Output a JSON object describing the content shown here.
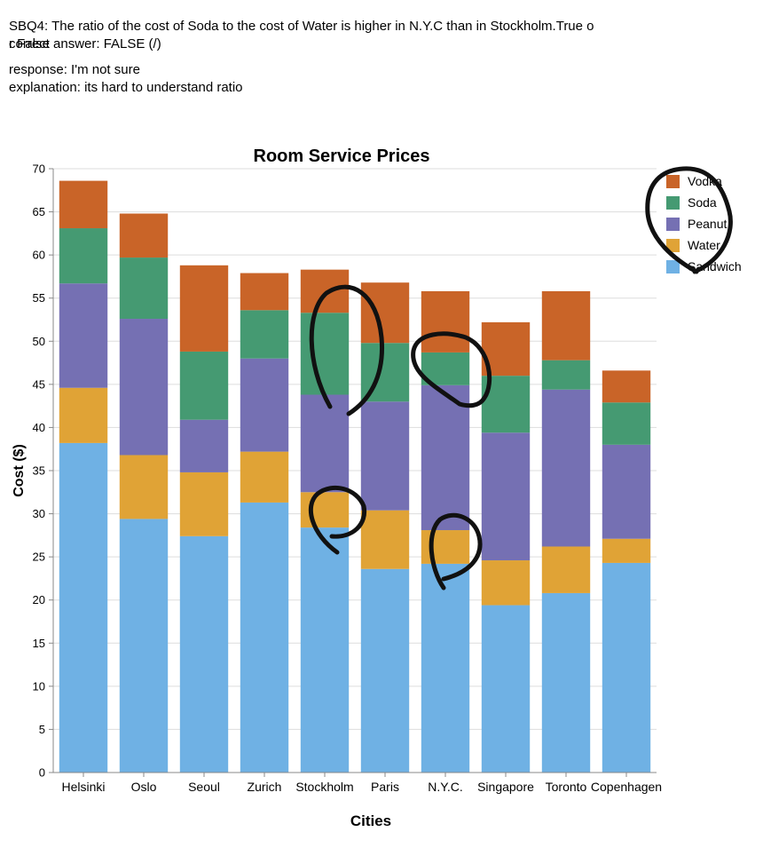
{
  "question": {
    "text": "SBQ4: The ratio of the cost of Soda to the cost of Water is higher in N.Y.C than in Stockholm.True o",
    "overlap_a": "r False",
    "overlap_b": "correct answer: FALSE (/)",
    "response": "response: I'm not sure",
    "explanation": "explanation: its hard to understand ratio"
  },
  "colors": {
    "Sandwich": "#6fb1e4",
    "Water": "#e0a336",
    "Peanut": "#7570b3",
    "Soda": "#459a72",
    "Vodka": "#c96428",
    "annotation": "#111111"
  },
  "chart_data": {
    "type": "bar",
    "stacked": true,
    "title": "Room Service Prices",
    "xlabel": "Cities",
    "ylabel": "Cost ($)",
    "ylim": [
      0,
      70
    ],
    "yticks": [
      0,
      5,
      10,
      15,
      20,
      25,
      30,
      35,
      40,
      45,
      50,
      55,
      60,
      65,
      70
    ],
    "grid": true,
    "legend_position": "top-right",
    "categories": [
      "Helsinki",
      "Oslo",
      "Seoul",
      "Zurich",
      "Stockholm",
      "Paris",
      "N.Y.C.",
      "Singapore",
      "Toronto",
      "Copenhagen"
    ],
    "series": [
      {
        "name": "Sandwich",
        "values": [
          38.2,
          29.4,
          27.4,
          31.3,
          28.4,
          23.6,
          24.2,
          19.4,
          20.8,
          24.3
        ]
      },
      {
        "name": "Water",
        "values": [
          6.4,
          7.4,
          7.4,
          5.9,
          4.1,
          6.8,
          3.9,
          5.2,
          5.4,
          2.8
        ]
      },
      {
        "name": "Peanut",
        "values": [
          12.1,
          15.8,
          6.1,
          10.8,
          11.3,
          12.6,
          16.8,
          14.8,
          18.2,
          10.9
        ]
      },
      {
        "name": "Soda",
        "values": [
          6.4,
          7.1,
          7.9,
          5.6,
          9.5,
          6.8,
          3.8,
          6.6,
          3.4,
          4.9
        ]
      },
      {
        "name": "Vodka",
        "values": [
          5.5,
          5.1,
          10.0,
          4.3,
          5.0,
          7.0,
          7.1,
          6.2,
          8.0,
          3.7
        ]
      }
    ],
    "legend_order": [
      "Vodka",
      "Soda",
      "Peanut",
      "Water",
      "Sandwich"
    ]
  }
}
